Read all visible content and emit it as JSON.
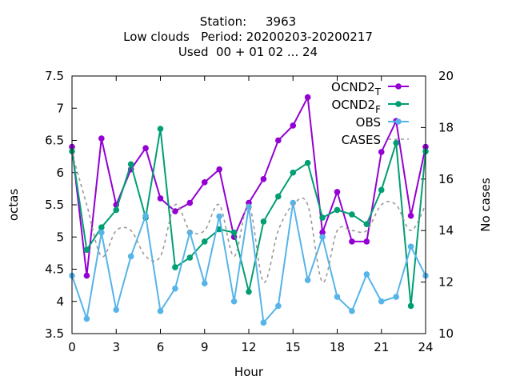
{
  "title_lines": [
    "Station:     3963",
    "Low clouds   Period: 20200203-20200217",
    "Used  00 + 01 02 ... 24"
  ],
  "chart_data": {
    "type": "line",
    "xlabel": "Hour",
    "ylabel": "octas",
    "y2label": "No cases",
    "xlim": [
      0,
      24
    ],
    "ylim": [
      3.5,
      7.5
    ],
    "y2lim": [
      10,
      20
    ],
    "xticks": [
      0,
      3,
      6,
      9,
      12,
      15,
      18,
      21,
      24
    ],
    "yticks": [
      3.5,
      4,
      4.5,
      5,
      5.5,
      6,
      6.5,
      7,
      7.5
    ],
    "y2ticks": [
      10,
      12,
      14,
      16,
      18,
      20
    ],
    "x": [
      0,
      1,
      2,
      3,
      4,
      5,
      6,
      7,
      8,
      9,
      10,
      11,
      12,
      13,
      14,
      15,
      16,
      17,
      18,
      19,
      20,
      21,
      22,
      23,
      24
    ],
    "grid": false,
    "legend_position": "top-right",
    "series": [
      {
        "name": "OCND2",
        "name_sub": "T",
        "color": "#9400d3",
        "style": "solid",
        "marker": true,
        "axis": "y",
        "values": [
          6.4,
          4.4,
          6.53,
          5.5,
          6.05,
          6.38,
          5.6,
          5.4,
          5.53,
          5.85,
          6.05,
          5.0,
          5.53,
          5.9,
          6.5,
          6.73,
          7.17,
          5.07,
          5.7,
          4.93,
          4.93,
          6.32,
          6.8,
          5.33,
          6.4
        ]
      },
      {
        "name": "OCND2",
        "name_sub": "F",
        "color": "#009e73",
        "style": "solid",
        "marker": true,
        "axis": "y",
        "values": [
          6.33,
          4.8,
          5.15,
          5.42,
          6.13,
          5.3,
          6.68,
          4.53,
          4.68,
          4.93,
          5.12,
          5.07,
          4.15,
          5.24,
          5.63,
          6.0,
          6.15,
          5.3,
          5.42,
          5.35,
          5.2,
          5.73,
          6.46,
          3.93,
          6.33
        ]
      },
      {
        "name": "OBS",
        "color": "#56b4e9",
        "style": "solid",
        "marker": true,
        "axis": "y",
        "values": [
          4.4,
          3.73,
          5.07,
          3.87,
          4.7,
          5.33,
          3.85,
          4.2,
          5.07,
          4.28,
          5.32,
          4.0,
          5.47,
          3.67,
          3.93,
          5.53,
          4.33,
          5.0,
          4.07,
          3.85,
          4.42,
          4.0,
          4.07,
          4.85,
          4.4
        ]
      },
      {
        "name": "CASES",
        "color": "#999999",
        "style": "dashed",
        "marker": false,
        "axis": "y2",
        "values": [
          17,
          15,
          13,
          14,
          14,
          13,
          13,
          15,
          14,
          14,
          15,
          13,
          15,
          12,
          14,
          15,
          15,
          12,
          14,
          14,
          14,
          15,
          15,
          14,
          15
        ]
      }
    ]
  }
}
